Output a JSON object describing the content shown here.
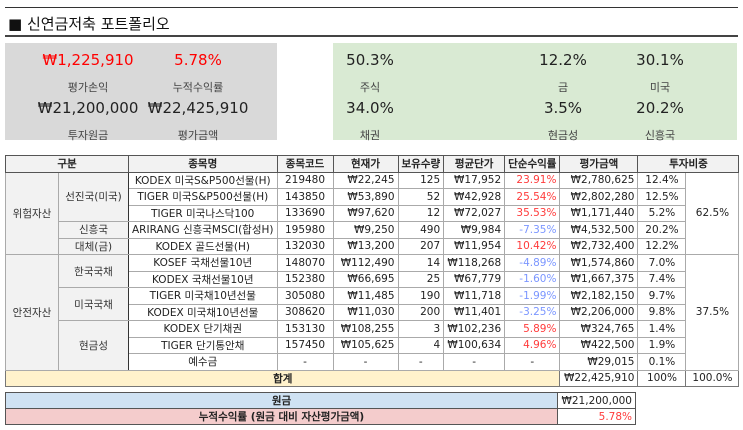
{
  "title": "■ 신연금저축 포트폴리오",
  "summary": {
    "left": [
      {
        "value": "₩1,225,910",
        "label": "평가손익",
        "red": true
      },
      {
        "value": "5.78%",
        "label": "누적수익률",
        "red": true
      },
      {
        "value": "₩21,200,000",
        "label": "투자원금"
      },
      {
        "value": "₩22,425,910",
        "label": "평가금액"
      }
    ],
    "right": [
      {
        "value": "50.3%",
        "label": "주식"
      },
      {
        "value": "12.2%",
        "label": "금"
      },
      {
        "value": "30.1%",
        "label": "미국"
      },
      {
        "value": "34.0%",
        "label": "채권"
      },
      {
        "value": "3.5%",
        "label": "현금성"
      },
      {
        "value": "20.2%",
        "label": "신흥국"
      }
    ]
  },
  "headers": [
    "구분",
    "종목명",
    "종목코드",
    "현재가",
    "보유수량",
    "평균단가",
    "단순수익률",
    "평가금액",
    "투자비중"
  ],
  "groups": {
    "risk": "위험자산",
    "risk_weight": "62.5%",
    "safe": "안전자산",
    "safe_weight": "37.5%"
  },
  "subgroups": [
    "선진국(미국)",
    "신흥국",
    "대체(금)",
    "한국국채",
    "미국국채",
    "현금성"
  ],
  "rows": [
    {
      "name": "KODEX 미국S&P500선물(H)",
      "code": "219480",
      "price": "₩22,245",
      "qty": "125",
      "avg": "₩17,952",
      "ret": "23.91%",
      "val": "₩2,780,625",
      "w": "12.4%",
      "sign": "pos"
    },
    {
      "name": "TIGER 미국S&P500선물(H)",
      "code": "143850",
      "price": "₩53,890",
      "qty": "52",
      "avg": "₩42,928",
      "ret": "25.54%",
      "val": "₩2,802,280",
      "w": "12.5%",
      "sign": "pos"
    },
    {
      "name": "TIGER 미국나스닥100",
      "code": "133690",
      "price": "₩97,620",
      "qty": "12",
      "avg": "₩72,027",
      "ret": "35.53%",
      "val": "₩1,171,440",
      "w": "5.2%",
      "sign": "pos"
    },
    {
      "name": "ARIRANG 신흥국MSCI(합성H)",
      "code": "195980",
      "price": "₩9,250",
      "qty": "490",
      "avg": "₩9,984",
      "ret": "-7.35%",
      "val": "₩4,532,500",
      "w": "20.2%",
      "sign": "neg"
    },
    {
      "name": "KODEX 골드선물(H)",
      "code": "132030",
      "price": "₩13,200",
      "qty": "207",
      "avg": "₩11,954",
      "ret": "10.42%",
      "val": "₩2,732,400",
      "w": "12.2%",
      "sign": "pos"
    },
    {
      "name": "KOSEF 국채선물10년",
      "code": "148070",
      "price": "₩112,490",
      "qty": "14",
      "avg": "₩118,268",
      "ret": "-4.89%",
      "val": "₩1,574,860",
      "w": "7.0%",
      "sign": "neg"
    },
    {
      "name": "KODEX 국채선물10년",
      "code": "152380",
      "price": "₩66,695",
      "qty": "25",
      "avg": "₩67,779",
      "ret": "-1.60%",
      "val": "₩1,667,375",
      "w": "7.4%",
      "sign": "neg"
    },
    {
      "name": "TIGER 미국채10년선물",
      "code": "305080",
      "price": "₩11,485",
      "qty": "190",
      "avg": "₩11,718",
      "ret": "-1.99%",
      "val": "₩2,182,150",
      "w": "9.7%",
      "sign": "neg"
    },
    {
      "name": "KODEX 미국채10년선물",
      "code": "308620",
      "price": "₩11,030",
      "qty": "200",
      "avg": "₩11,401",
      "ret": "-3.25%",
      "val": "₩2,206,000",
      "w": "9.8%",
      "sign": "neg"
    },
    {
      "name": "KODEX 단기채권",
      "code": "153130",
      "price": "₩108,255",
      "qty": "3",
      "avg": "₩102,236",
      "ret": "5.89%",
      "val": "₩324,765",
      "w": "1.4%",
      "sign": "pos"
    },
    {
      "name": "TIGER 단기통안채",
      "code": "157450",
      "price": "₩105,625",
      "qty": "4",
      "avg": "₩100,634",
      "ret": "4.96%",
      "val": "₩422,500",
      "w": "1.9%",
      "sign": "pos"
    },
    {
      "name": "예수금",
      "code": "-",
      "price": "-",
      "qty": "-",
      "avg": "-",
      "ret": "-",
      "val": "₩29,015",
      "w": "0.1%",
      "sign": "none"
    }
  ],
  "total": {
    "label": "합계",
    "val": "₩22,425,910",
    "w": "100%",
    "w2": "100.0%"
  },
  "principal": {
    "label": "원금",
    "val": "₩21,200,000"
  },
  "cumulative": {
    "label": "누적수익률 (원금 대비 자산평가금액)",
    "val": "5.78%"
  }
}
